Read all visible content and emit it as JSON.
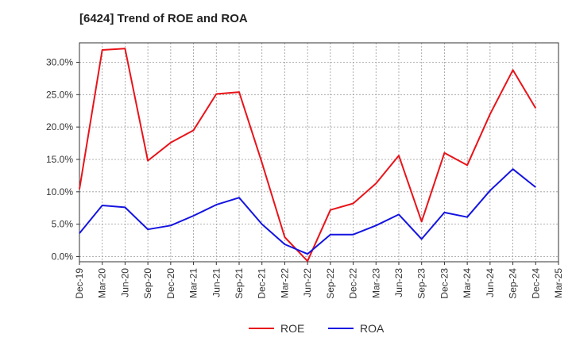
{
  "chart_data": {
    "type": "line",
    "title": "[6424]  Trend of ROE and ROA",
    "xlabel": "",
    "ylabel": "",
    "ylim": [
      -0.8,
      33.0
    ],
    "y_ticks": [
      "0.0%",
      "5.0%",
      "10.0%",
      "15.0%",
      "20.0%",
      "25.0%",
      "30.0%"
    ],
    "y_tick_values": [
      0,
      5,
      10,
      15,
      20,
      25,
      30
    ],
    "categories": [
      "Dec-19",
      "Mar-20",
      "Jun-20",
      "Sep-20",
      "Dec-20",
      "Mar-21",
      "Jun-21",
      "Sep-21",
      "Dec-21",
      "Mar-22",
      "Jun-22",
      "Sep-22",
      "Dec-22",
      "Mar-23",
      "Jun-23",
      "Sep-23",
      "Dec-23",
      "Mar-24",
      "Jun-24",
      "Sep-24",
      "Dec-24",
      "Mar-25"
    ],
    "grid": true,
    "legend_position": "bottom",
    "series": [
      {
        "name": "ROE",
        "color": "#e8141a",
        "values": [
          10.4,
          31.9,
          32.1,
          14.8,
          17.6,
          19.5,
          25.1,
          25.4,
          14.5,
          3.0,
          -0.7,
          7.2,
          8.2,
          11.3,
          15.6,
          5.4,
          16.0,
          14.1,
          22.0,
          28.8,
          22.9,
          null
        ]
      },
      {
        "name": "ROA",
        "color": "#1414e0",
        "values": [
          3.6,
          7.9,
          7.6,
          4.2,
          4.8,
          6.3,
          8.0,
          9.1,
          5.0,
          1.9,
          0.4,
          3.4,
          3.4,
          4.8,
          6.5,
          2.7,
          6.8,
          6.1,
          10.2,
          13.5,
          10.7,
          null
        ]
      }
    ]
  }
}
